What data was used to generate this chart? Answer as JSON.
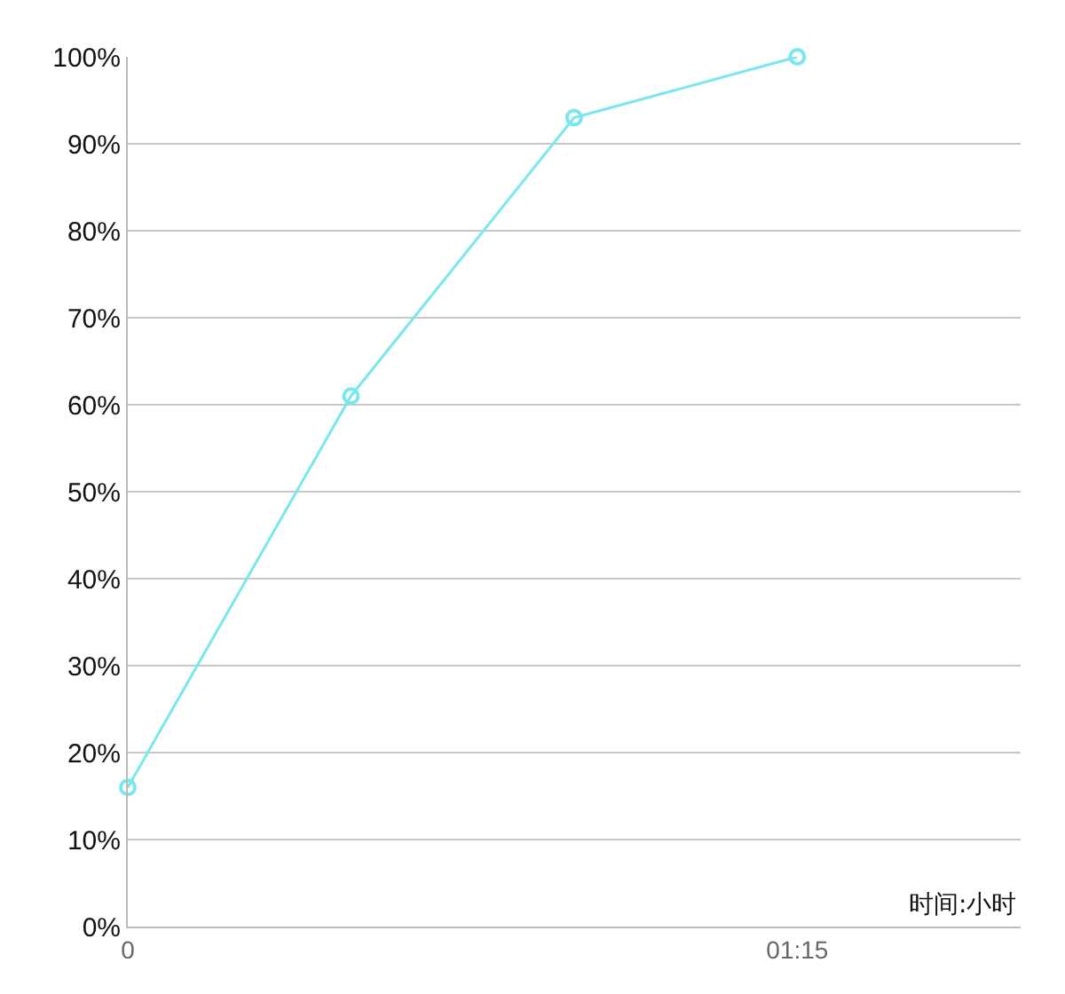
{
  "chart_data": {
    "type": "line",
    "xlabel": "时间:小时",
    "x": [
      0,
      0.4167,
      0.8333,
      1.25
    ],
    "series": [
      {
        "color": "#7ae6ee",
        "values": [
          16,
          61,
          93,
          100
        ]
      }
    ],
    "xlim": [
      0,
      1.667
    ],
    "xticks": [
      {
        "value": 0,
        "label": "0"
      },
      {
        "value": 1.25,
        "label": "01:15"
      }
    ],
    "ylim": [
      0,
      100
    ],
    "yticks": [
      {
        "value": 0,
        "label": "0%"
      },
      {
        "value": 10,
        "label": "10%"
      },
      {
        "value": 20,
        "label": "20%"
      },
      {
        "value": 30,
        "label": "30%"
      },
      {
        "value": 40,
        "label": "40%"
      },
      {
        "value": 50,
        "label": "50%"
      },
      {
        "value": 60,
        "label": "60%"
      },
      {
        "value": 70,
        "label": "70%"
      },
      {
        "value": 80,
        "label": "80%"
      },
      {
        "value": 90,
        "label": "90%"
      },
      {
        "value": 100,
        "label": "100%"
      }
    ],
    "grid": "y",
    "marker": "circle",
    "line_style": "solid"
  }
}
